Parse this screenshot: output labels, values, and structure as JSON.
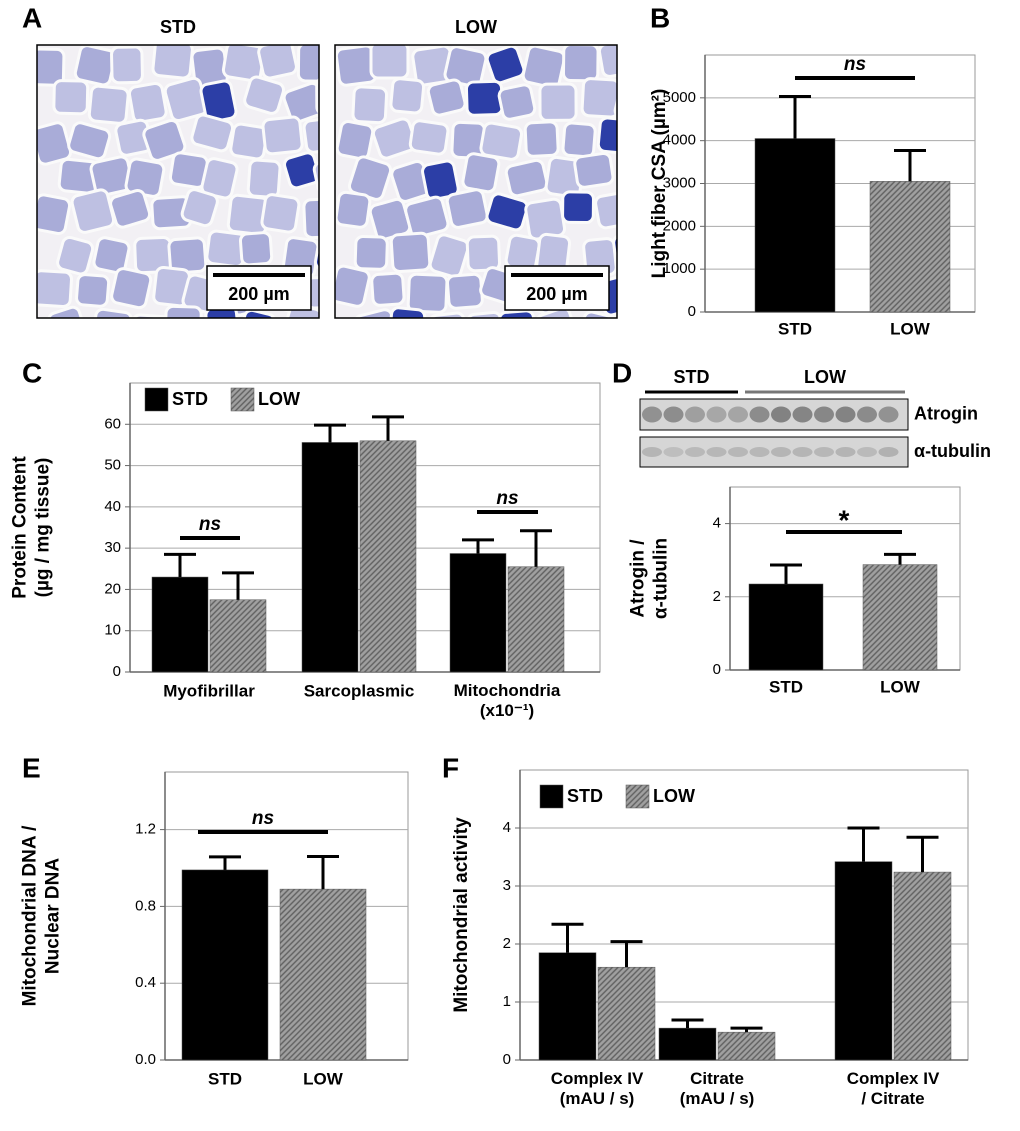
{
  "panel_a": {
    "letter": "A",
    "images": [
      {
        "label": "STD",
        "scale_bar": "200 µm"
      },
      {
        "label": "LOW",
        "scale_bar": "200 µm"
      }
    ]
  },
  "blot": {
    "groups": [
      "STD",
      "LOW"
    ],
    "bands": [
      "Atrogin",
      "α-tubulin"
    ]
  },
  "chart_data": [
    {
      "panel": "B",
      "type": "bar",
      "ylabel": "Light fiber CSA (µm²)",
      "categories": [
        "STD",
        "LOW"
      ],
      "values": [
        4050,
        3050
      ],
      "errors": [
        980,
        720
      ],
      "colors": [
        "#000000",
        "#a0a0a0"
      ],
      "hatch": [
        false,
        true
      ],
      "ylim": [
        0,
        6000
      ],
      "yticks": [
        0,
        1000,
        2000,
        3000,
        4000,
        5000
      ],
      "grid": true,
      "annotations": [
        "ns"
      ]
    },
    {
      "panel": "C",
      "type": "bar",
      "ylabel": "Protein Content\n(µg / mg tissue)",
      "categories": [
        "Myofibrillar",
        "Sarcoplasmic",
        "Mitochondria\n(x10⁻¹)"
      ],
      "series": [
        {
          "name": "STD",
          "color": "#000000",
          "hatch": false,
          "values": [
            23,
            55.6,
            28.7
          ],
          "errors": [
            5.5,
            4.2,
            3.3
          ]
        },
        {
          "name": "LOW",
          "color": "#a0a0a0",
          "hatch": true,
          "values": [
            17.5,
            56,
            25.5
          ],
          "errors": [
            6.5,
            5.8,
            8.7
          ]
        }
      ],
      "ylim": [
        0,
        70
      ],
      "yticks": [
        0,
        10,
        20,
        30,
        40,
        50,
        60
      ],
      "grid": true,
      "legend": "top-left",
      "annotations": [
        "ns",
        "ns"
      ]
    },
    {
      "panel": "D",
      "type": "bar",
      "ylabel": "Atrogin /\nα-tubulin",
      "categories": [
        "STD",
        "LOW"
      ],
      "values": [
        2.35,
        2.88
      ],
      "errors": [
        0.52,
        0.28
      ],
      "colors": [
        "#000000",
        "#a0a0a0"
      ],
      "hatch": [
        false,
        true
      ],
      "ylim": [
        0,
        5
      ],
      "yticks": [
        0,
        2,
        4
      ],
      "grid": true,
      "annotations": [
        "*"
      ]
    },
    {
      "panel": "E",
      "type": "bar",
      "ylabel": "Mitochondrial DNA /\nNuclear DNA",
      "categories": [
        "STD",
        "LOW"
      ],
      "values": [
        0.99,
        0.89
      ],
      "errors": [
        0.068,
        0.17
      ],
      "colors": [
        "#000000",
        "#a0a0a0"
      ],
      "hatch": [
        false,
        true
      ],
      "ylim": [
        0,
        1.5
      ],
      "yticks": [
        {
          "value": 0,
          "label": "0.0"
        },
        0.4,
        0.8,
        1.2
      ],
      "grid": true,
      "annotations": [
        "ns"
      ]
    },
    {
      "panel": "F",
      "type": "bar",
      "ylabel": "Mitochondrial activity",
      "categories": [
        "Complex IV\n(mAU / s)",
        "Citrate\n(mAU / s)",
        "Complex IV\n/ Citrate"
      ],
      "series": [
        {
          "name": "STD",
          "color": "#000000",
          "hatch": false,
          "values": [
            1.85,
            0.55,
            3.42
          ],
          "errors": [
            0.49,
            0.14,
            0.58
          ]
        },
        {
          "name": "LOW",
          "color": "#a0a0a0",
          "hatch": true,
          "values": [
            1.6,
            0.48,
            3.24
          ],
          "errors": [
            0.44,
            0.07,
            0.6
          ]
        }
      ],
      "ylim": [
        0,
        5
      ],
      "yticks": [
        0,
        1,
        2,
        3,
        4
      ],
      "grid": true,
      "legend": "top-left"
    }
  ]
}
